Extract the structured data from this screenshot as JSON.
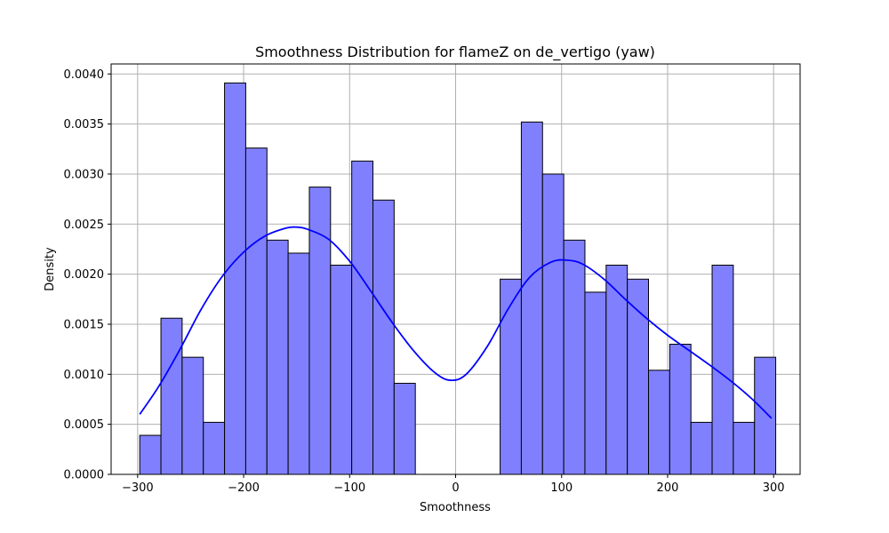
{
  "chart_data": {
    "type": "bar",
    "title": "Smoothness Distribution for flameZ on de_vertigo (yaw)",
    "xlabel": "Smoothness",
    "ylabel": "Density",
    "xlim": [
      -325,
      325
    ],
    "ylim": [
      0,
      0.0041
    ],
    "xticks": [
      -300,
      -200,
      -100,
      0,
      100,
      200,
      300
    ],
    "xtick_labels": [
      "−300",
      "−200",
      "−100",
      "0",
      "100",
      "200",
      "300"
    ],
    "yticks": [
      0,
      0.0005,
      0.001,
      0.0015,
      0.002,
      0.0025,
      0.003,
      0.0035,
      0.004
    ],
    "ytick_labels": [
      "0.0000",
      "0.0005",
      "0.0010",
      "0.0015",
      "0.0020",
      "0.0025",
      "0.0030",
      "0.0035",
      "0.0040"
    ],
    "grid": true,
    "bar_color": "#8080ff",
    "bar_edge_color": "#000000",
    "kde_color": "#0000ff",
    "bins": {
      "edges": [
        -298,
        -278,
        -258,
        -238,
        -218,
        -198,
        -178,
        -158,
        -138,
        -118,
        -98,
        -78,
        -58,
        -38,
        -18,
        2,
        22,
        42,
        62,
        82,
        102,
        122,
        142,
        162,
        182,
        202,
        222,
        242,
        262,
        282,
        302
      ],
      "values": [
        0.00039,
        0.00156,
        0.00117,
        0.00052,
        0.00391,
        0.00326,
        0.00234,
        0.00221,
        0.00287,
        0.00209,
        0.00313,
        0.00274,
        0.00091,
        0,
        0,
        0,
        0,
        0.00195,
        0.00352,
        0.003,
        0.00234,
        0.00182,
        0.00209,
        0.00195,
        0.00104,
        0.0013,
        0.00052,
        0.00209,
        0.00052,
        0.00117
      ]
    },
    "kde": {
      "x": [
        -298,
        -280,
        -260,
        -240,
        -220,
        -200,
        -180,
        -160,
        -150,
        -140,
        -120,
        -100,
        -80,
        -60,
        -40,
        -20,
        -5,
        10,
        30,
        50,
        70,
        90,
        105,
        120,
        140,
        160,
        180,
        200,
        220,
        240,
        260,
        280,
        298
      ],
      "y": [
        0.0006,
        0.00088,
        0.00125,
        0.00165,
        0.00198,
        0.00222,
        0.00238,
        0.00246,
        0.00247,
        0.00245,
        0.00235,
        0.00213,
        0.00183,
        0.00152,
        0.00124,
        0.00102,
        0.00094,
        0.001,
        0.00128,
        0.00166,
        0.00197,
        0.00212,
        0.00214,
        0.0021,
        0.00195,
        0.00175,
        0.00156,
        0.00139,
        0.00124,
        0.00109,
        0.00093,
        0.00075,
        0.00056
      ]
    }
  }
}
